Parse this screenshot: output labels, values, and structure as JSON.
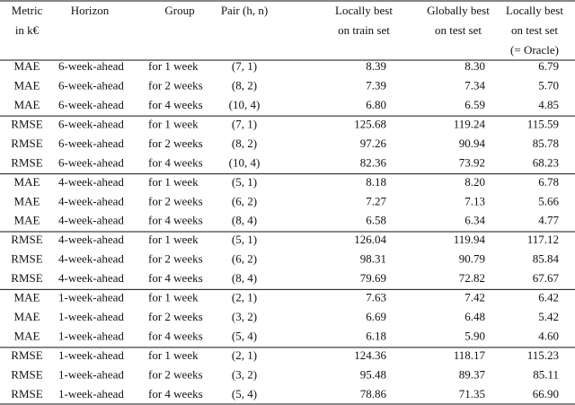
{
  "table": {
    "header": [
      [
        "Metric",
        "in k€"
      ],
      [
        "Horizon"
      ],
      [
        "Group"
      ],
      [
        "Pair (h, n)"
      ],
      [
        "Locally best",
        "on train set"
      ],
      [
        "Globally best",
        "on test set"
      ],
      [
        "Locally best",
        "on test set",
        "(= Oracle)"
      ]
    ],
    "rows": [
      [
        "MAE",
        "6-week-ahead",
        "for 1 week",
        "(7, 1)",
        "8.39",
        "8.30",
        "6.79"
      ],
      [
        "MAE",
        "6-week-ahead",
        "for 2 weeks",
        "(8, 2)",
        "7.39",
        "7.34",
        "5.70"
      ],
      [
        "MAE",
        "6-week-ahead",
        "for 4 weeks",
        "(10, 4)",
        "6.80",
        "6.59",
        "4.85"
      ],
      [
        "RMSE",
        "6-week-ahead",
        "for 1 week",
        "(7, 1)",
        "125.68",
        "119.24",
        "115.59"
      ],
      [
        "RMSE",
        "6-week-ahead",
        "for 2 weeks",
        "(8, 2)",
        "97.26",
        "90.94",
        "85.78"
      ],
      [
        "RMSE",
        "6-week-ahead",
        "for 4 weeks",
        "(10, 4)",
        "82.36",
        "73.92",
        "68.23"
      ],
      [
        "MAE",
        "4-week-ahead",
        "for 1 week",
        "(5, 1)",
        "8.18",
        "8.20",
        "6.78"
      ],
      [
        "MAE",
        "4-week-ahead",
        "for 2 weeks",
        "(6, 2)",
        "7.27",
        "7.13",
        "5.66"
      ],
      [
        "MAE",
        "4-week-ahead",
        "for 4 weeks",
        "(8, 4)",
        "6.58",
        "6.34",
        "4.77"
      ],
      [
        "RMSE",
        "4-week-ahead",
        "for 1 week",
        "(5, 1)",
        "126.04",
        "119.94",
        "117.12"
      ],
      [
        "RMSE",
        "4-week-ahead",
        "for 2 weeks",
        "(6, 2)",
        "98.31",
        "90.79",
        "85.84"
      ],
      [
        "RMSE",
        "4-week-ahead",
        "for 4 weeks",
        "(8, 4)",
        "79.69",
        "72.82",
        "67.67"
      ],
      [
        "MAE",
        "1-week-ahead",
        "for 1 week",
        "(2, 1)",
        "7.63",
        "7.42",
        "6.42"
      ],
      [
        "MAE",
        "1-week-ahead",
        "for 2 weeks",
        "(3, 2)",
        "6.69",
        "6.48",
        "5.42"
      ],
      [
        "MAE",
        "1-week-ahead",
        "for 4 weeks",
        "(5, 4)",
        "6.18",
        "5.90",
        "4.60"
      ],
      [
        "RMSE",
        "1-week-ahead",
        "for 1 week",
        "(2, 1)",
        "124.36",
        "118.17",
        "115.23"
      ],
      [
        "RMSE",
        "1-week-ahead",
        "for 2 weeks",
        "(3, 2)",
        "95.48",
        "89.37",
        "85.11"
      ],
      [
        "RMSE",
        "1-week-ahead",
        "for 4 weeks",
        "(5, 4)",
        "78.86",
        "71.35",
        "66.90"
      ]
    ]
  }
}
